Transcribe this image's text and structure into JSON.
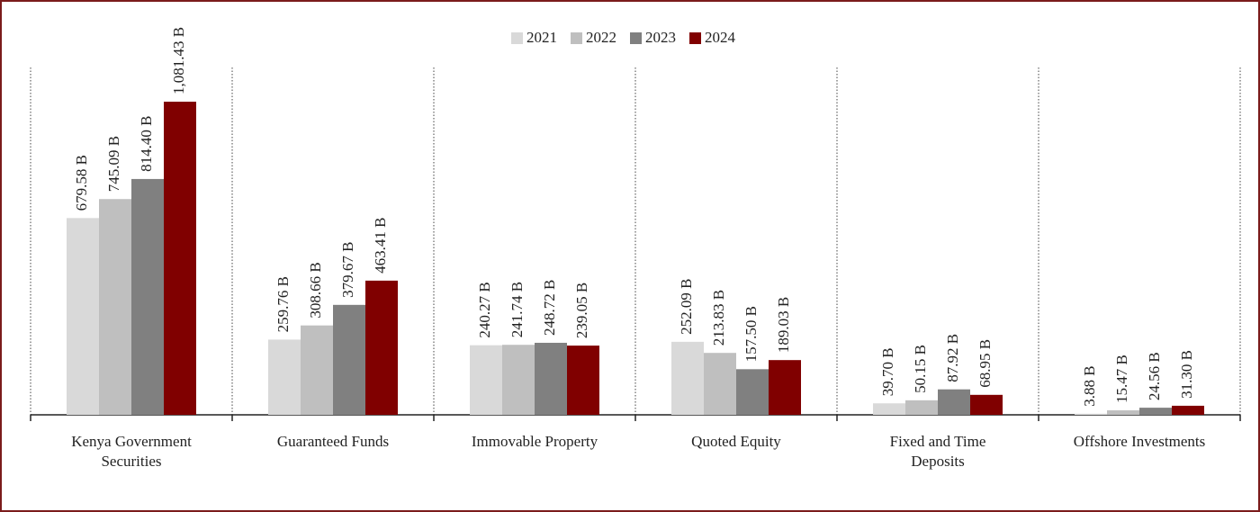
{
  "chart_data": {
    "type": "bar",
    "categories": [
      "Kenya Government Securities",
      "Guaranteed Funds",
      "Immovable Property",
      "Quoted Equity",
      "Fixed and Time Deposits",
      "Offshore Investments"
    ],
    "series": [
      {
        "name": "2021",
        "color": "#d9d9d9",
        "values": [
          679.58,
          259.76,
          240.27,
          252.09,
          39.7,
          3.88
        ],
        "value_labels": [
          "679.58 B",
          "259.76 B",
          "240.27 B",
          "252.09 B",
          "39.70 B",
          "3.88 B"
        ]
      },
      {
        "name": "2022",
        "color": "#bfbfbf",
        "values": [
          745.09,
          308.66,
          241.74,
          213.83,
          50.15,
          15.47
        ],
        "value_labels": [
          "745.09 B",
          "308.66 B",
          "241.74 B",
          "213.83 B",
          "50.15 B",
          "15.47 B"
        ]
      },
      {
        "name": "2023",
        "color": "#808080",
        "values": [
          814.4,
          379.67,
          248.72,
          157.5,
          87.92,
          24.56
        ],
        "value_labels": [
          "814.40 B",
          "379.67 B",
          "248.72 B",
          "157.50 B",
          "87.92 B",
          "24.56 B"
        ]
      },
      {
        "name": "2024",
        "color": "#800000",
        "values": [
          1081.43,
          463.41,
          239.05,
          189.03,
          68.95,
          31.3
        ],
        "value_labels": [
          "1,081.43 B",
          "463.41 B",
          "239.05 B",
          "189.03 B",
          "68.95 B",
          "31.30 B"
        ]
      }
    ],
    "legend": "top"
  }
}
